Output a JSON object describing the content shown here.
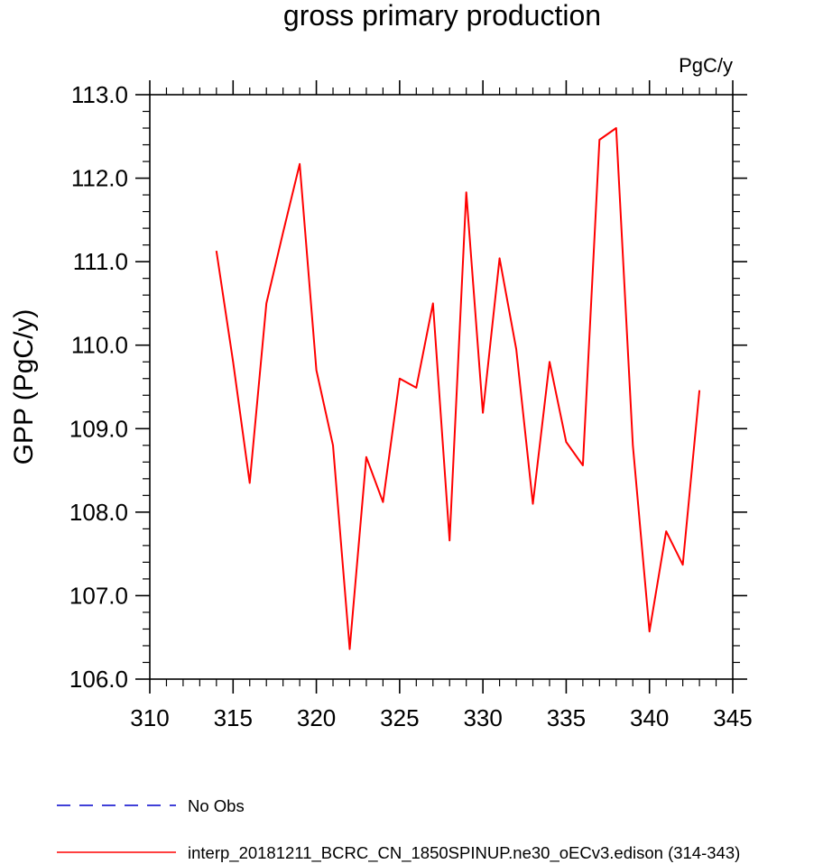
{
  "chart_data": {
    "type": "line",
    "title": "gross primary production",
    "units_label": "PgC/y",
    "ylabel": "GPP  (PgC/y)",
    "xlabel": "",
    "xlim": [
      310,
      345
    ],
    "ylim": [
      106.0,
      113.0
    ],
    "x_ticks": [
      310,
      315,
      320,
      325,
      330,
      335,
      340,
      345
    ],
    "y_ticks": [
      "106.0",
      "107.0",
      "108.0",
      "109.0",
      "110.0",
      "111.0",
      "112.0",
      "113.0"
    ],
    "grid": false,
    "legend_placement": "bottom-left",
    "series": [
      {
        "name": "interp_20181211_BCRC_CN_1850SPINUP.ne30_oECv3.edison (314-343)",
        "color": "#ff0000",
        "style": "solid",
        "x": [
          314,
          315,
          316,
          317,
          318,
          319,
          320,
          321,
          322,
          323,
          324,
          325,
          326,
          327,
          328,
          329,
          330,
          331,
          332,
          333,
          334,
          335,
          336,
          337,
          338,
          339,
          340,
          341,
          342,
          343
        ],
        "y": [
          111.13,
          109.8,
          108.35,
          110.5,
          111.35,
          112.17,
          109.7,
          108.8,
          106.36,
          108.66,
          108.12,
          109.6,
          109.49,
          110.5,
          107.66,
          111.83,
          109.19,
          111.04,
          109.95,
          108.1,
          109.8,
          108.84,
          108.56,
          112.46,
          112.6,
          108.8,
          106.57,
          107.77,
          107.37,
          109.46
        ]
      }
    ],
    "legend": [
      {
        "label": "No Obs",
        "color": "#0000cc",
        "style": "dashed"
      },
      {
        "label": "interp_20181211_BCRC_CN_1850SPINUP.ne30_oECv3.edison (314-343)",
        "color": "#ff0000",
        "style": "solid"
      }
    ]
  }
}
